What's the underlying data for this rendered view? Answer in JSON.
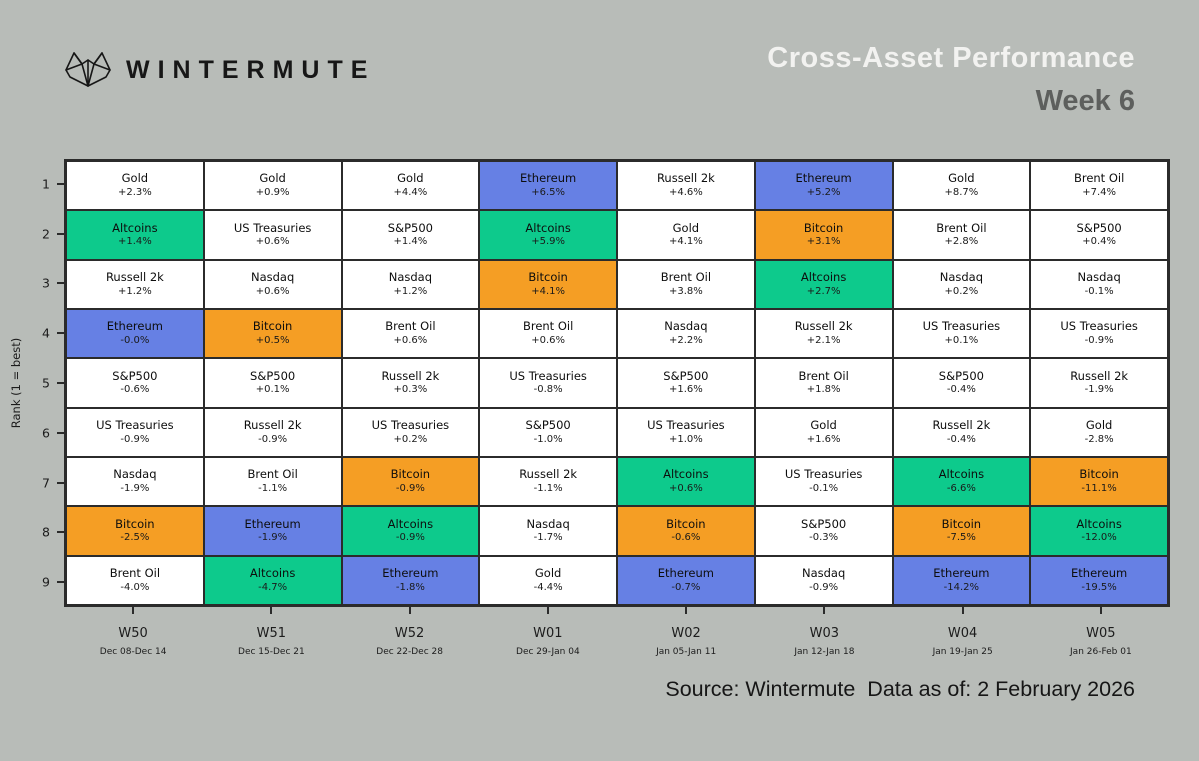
{
  "header": {
    "brand": "WINTERMUTE",
    "title": "Cross-Asset Performance",
    "subtitle": "Week 6"
  },
  "chart_data": {
    "type": "table",
    "title": "Cross-Asset Performance",
    "subtitle": "Week 6",
    "ylabel": "Rank (1 = best)",
    "ranks": [
      "1",
      "2",
      "3",
      "4",
      "5",
      "6",
      "7",
      "8",
      "9"
    ],
    "legend_position": "none",
    "grid": true,
    "colors": {
      "Altcoins": "#0dca8c",
      "Bitcoin": "#f59e24",
      "Ethereum": "#6680e4",
      "default": "#ffffff"
    },
    "columns": [
      {
        "week": "W50",
        "dates": "Dec 08-Dec 14",
        "cells": [
          {
            "asset": "Gold",
            "change": "+2.3%"
          },
          {
            "asset": "Altcoins",
            "change": "+1.4%"
          },
          {
            "asset": "Russell 2k",
            "change": "+1.2%"
          },
          {
            "asset": "Ethereum",
            "change": "-0.0%"
          },
          {
            "asset": "S&P500",
            "change": "-0.6%"
          },
          {
            "asset": "US Treasuries",
            "change": "-0.9%"
          },
          {
            "asset": "Nasdaq",
            "change": "-1.9%"
          },
          {
            "asset": "Bitcoin",
            "change": "-2.5%"
          },
          {
            "asset": "Brent Oil",
            "change": "-4.0%"
          }
        ]
      },
      {
        "week": "W51",
        "dates": "Dec 15-Dec 21",
        "cells": [
          {
            "asset": "Gold",
            "change": "+0.9%"
          },
          {
            "asset": "US Treasuries",
            "change": "+0.6%"
          },
          {
            "asset": "Nasdaq",
            "change": "+0.6%"
          },
          {
            "asset": "Bitcoin",
            "change": "+0.5%"
          },
          {
            "asset": "S&P500",
            "change": "+0.1%"
          },
          {
            "asset": "Russell 2k",
            "change": "-0.9%"
          },
          {
            "asset": "Brent Oil",
            "change": "-1.1%"
          },
          {
            "asset": "Ethereum",
            "change": "-1.9%"
          },
          {
            "asset": "Altcoins",
            "change": "-4.7%"
          }
        ]
      },
      {
        "week": "W52",
        "dates": "Dec 22-Dec 28",
        "cells": [
          {
            "asset": "Gold",
            "change": "+4.4%"
          },
          {
            "asset": "S&P500",
            "change": "+1.4%"
          },
          {
            "asset": "Nasdaq",
            "change": "+1.2%"
          },
          {
            "asset": "Brent Oil",
            "change": "+0.6%"
          },
          {
            "asset": "Russell 2k",
            "change": "+0.3%"
          },
          {
            "asset": "US Treasuries",
            "change": "+0.2%"
          },
          {
            "asset": "Bitcoin",
            "change": "-0.9%"
          },
          {
            "asset": "Altcoins",
            "change": "-0.9%"
          },
          {
            "asset": "Ethereum",
            "change": "-1.8%"
          }
        ]
      },
      {
        "week": "W01",
        "dates": "Dec 29-Jan 04",
        "cells": [
          {
            "asset": "Ethereum",
            "change": "+6.5%"
          },
          {
            "asset": "Altcoins",
            "change": "+5.9%"
          },
          {
            "asset": "Bitcoin",
            "change": "+4.1%"
          },
          {
            "asset": "Brent Oil",
            "change": "+0.6%"
          },
          {
            "asset": "US Treasuries",
            "change": "-0.8%"
          },
          {
            "asset": "S&P500",
            "change": "-1.0%"
          },
          {
            "asset": "Russell 2k",
            "change": "-1.1%"
          },
          {
            "asset": "Nasdaq",
            "change": "-1.7%"
          },
          {
            "asset": "Gold",
            "change": "-4.4%"
          }
        ]
      },
      {
        "week": "W02",
        "dates": "Jan 05-Jan 11",
        "cells": [
          {
            "asset": "Russell 2k",
            "change": "+4.6%"
          },
          {
            "asset": "Gold",
            "change": "+4.1%"
          },
          {
            "asset": "Brent Oil",
            "change": "+3.8%"
          },
          {
            "asset": "Nasdaq",
            "change": "+2.2%"
          },
          {
            "asset": "S&P500",
            "change": "+1.6%"
          },
          {
            "asset": "US Treasuries",
            "change": "+1.0%"
          },
          {
            "asset": "Altcoins",
            "change": "+0.6%"
          },
          {
            "asset": "Bitcoin",
            "change": "-0.6%"
          },
          {
            "asset": "Ethereum",
            "change": "-0.7%"
          }
        ]
      },
      {
        "week": "W03",
        "dates": "Jan 12-Jan 18",
        "cells": [
          {
            "asset": "Ethereum",
            "change": "+5.2%"
          },
          {
            "asset": "Bitcoin",
            "change": "+3.1%"
          },
          {
            "asset": "Altcoins",
            "change": "+2.7%"
          },
          {
            "asset": "Russell 2k",
            "change": "+2.1%"
          },
          {
            "asset": "Brent Oil",
            "change": "+1.8%"
          },
          {
            "asset": "Gold",
            "change": "+1.6%"
          },
          {
            "asset": "US Treasuries",
            "change": "-0.1%"
          },
          {
            "asset": "S&P500",
            "change": "-0.3%"
          },
          {
            "asset": "Nasdaq",
            "change": "-0.9%"
          }
        ]
      },
      {
        "week": "W04",
        "dates": "Jan 19-Jan 25",
        "cells": [
          {
            "asset": "Gold",
            "change": "+8.7%"
          },
          {
            "asset": "Brent Oil",
            "change": "+2.8%"
          },
          {
            "asset": "Nasdaq",
            "change": "+0.2%"
          },
          {
            "asset": "US Treasuries",
            "change": "+0.1%"
          },
          {
            "asset": "S&P500",
            "change": "-0.4%"
          },
          {
            "asset": "Russell 2k",
            "change": "-0.4%"
          },
          {
            "asset": "Altcoins",
            "change": "-6.6%"
          },
          {
            "asset": "Bitcoin",
            "change": "-7.5%"
          },
          {
            "asset": "Ethereum",
            "change": "-14.2%"
          }
        ]
      },
      {
        "week": "W05",
        "dates": "Jan 26-Feb 01",
        "cells": [
          {
            "asset": "Brent Oil",
            "change": "+7.4%"
          },
          {
            "asset": "S&P500",
            "change": "+0.4%"
          },
          {
            "asset": "Nasdaq",
            "change": "-0.1%"
          },
          {
            "asset": "US Treasuries",
            "change": "-0.9%"
          },
          {
            "asset": "Russell 2k",
            "change": "-1.9%"
          },
          {
            "asset": "Gold",
            "change": "-2.8%"
          },
          {
            "asset": "Bitcoin",
            "change": "-11.1%"
          },
          {
            "asset": "Altcoins",
            "change": "-12.0%"
          },
          {
            "asset": "Ethereum",
            "change": "-19.5%"
          }
        ]
      }
    ]
  },
  "footer": {
    "source": "Source: Wintermute  Data as of: 2 February 2026"
  }
}
